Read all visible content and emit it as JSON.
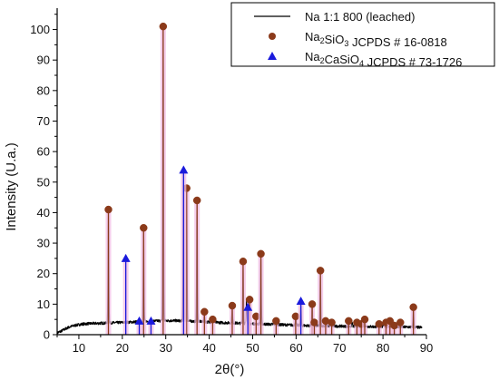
{
  "chart_data": {
    "type": "line",
    "xlabel": "2θ(°)",
    "ylabel": "Intensity (U.a.)",
    "xlim": [
      5,
      90
    ],
    "ylim": [
      0,
      107
    ],
    "x_ticks": [
      10,
      20,
      30,
      40,
      50,
      60,
      70,
      80,
      90
    ],
    "y_ticks": [
      0,
      10,
      20,
      30,
      40,
      50,
      60,
      70,
      80,
      90,
      100
    ],
    "grid": false,
    "legend_placement": "top-right",
    "colors": {
      "pattern_line": "#000000",
      "ref_phase_1": "#8b3a1a",
      "ref_phase_2": "#1a1adc",
      "ref_highlight": "#f2bde4"
    },
    "legend": [
      {
        "type": "line",
        "label": "Na 1:1 800 (leached)"
      },
      {
        "type": "circle-marker",
        "label_parts": [
          {
            "text": "Na"
          },
          {
            "text": "2",
            "sub": true
          },
          {
            "text": "SiO"
          },
          {
            "text": "3",
            "sub": true
          },
          {
            "text": " JCPDS # 16-0818"
          }
        ]
      },
      {
        "type": "triangle-marker",
        "label_parts": [
          {
            "text": "Na"
          },
          {
            "text": "2",
            "sub": true
          },
          {
            "text": "CaSiO"
          },
          {
            "text": "4",
            "sub": true
          },
          {
            "text": " JCPDS # 73-1726"
          }
        ]
      }
    ],
    "series": [
      {
        "name": "Na 1:1 800 (leached)",
        "kind": "line",
        "background_points": [
          [
            5,
            0.6
          ],
          [
            6,
            1.2
          ],
          [
            7,
            2.0
          ],
          [
            8,
            2.6
          ],
          [
            9,
            3.0
          ],
          [
            10,
            3.3
          ],
          [
            11,
            3.5
          ],
          [
            12,
            3.6
          ],
          [
            14,
            3.7
          ],
          [
            16,
            3.8
          ],
          [
            18,
            3.9
          ],
          [
            20,
            4.0
          ],
          [
            22,
            4.1
          ],
          [
            24,
            4.3
          ],
          [
            26,
            4.4
          ],
          [
            28,
            4.5
          ],
          [
            30,
            4.6
          ],
          [
            32,
            4.6
          ],
          [
            34,
            4.5
          ],
          [
            36,
            4.4
          ],
          [
            38,
            4.3
          ],
          [
            40,
            4.1
          ],
          [
            42,
            4.0
          ],
          [
            44,
            3.9
          ],
          [
            46,
            3.8
          ],
          [
            48,
            3.7
          ],
          [
            50,
            3.6
          ],
          [
            52,
            3.5
          ],
          [
            54,
            3.4
          ],
          [
            56,
            3.3
          ],
          [
            58,
            3.2
          ],
          [
            60,
            3.1
          ],
          [
            62,
            3.0
          ],
          [
            64,
            2.9
          ],
          [
            66,
            2.9
          ],
          [
            68,
            2.8
          ],
          [
            70,
            2.8
          ],
          [
            72,
            2.7
          ],
          [
            74,
            2.7
          ],
          [
            76,
            2.7
          ],
          [
            78,
            2.6
          ],
          [
            80,
            2.6
          ],
          [
            82,
            2.6
          ],
          [
            84,
            2.5
          ],
          [
            86,
            2.5
          ],
          [
            88,
            2.4
          ],
          [
            89,
            2.4
          ]
        ],
        "peaks": [
          {
            "x": 16.8,
            "y": 40
          },
          {
            "x": 24.9,
            "y": 35
          },
          {
            "x": 29.4,
            "y": 100
          },
          {
            "x": 34.1,
            "y": 53
          },
          {
            "x": 34.8,
            "y": 48
          },
          {
            "x": 37.2,
            "y": 44
          },
          {
            "x": 38.9,
            "y": 7
          },
          {
            "x": 40.8,
            "y": 5
          },
          {
            "x": 45.3,
            "y": 9
          },
          {
            "x": 47.8,
            "y": 23
          },
          {
            "x": 48.6,
            "y": 11
          },
          {
            "x": 51.9,
            "y": 26
          },
          {
            "x": 55.4,
            "y": 5
          },
          {
            "x": 59.9,
            "y": 6
          },
          {
            "x": 61.1,
            "y": 10
          },
          {
            "x": 63.7,
            "y": 10
          },
          {
            "x": 65.6,
            "y": 20
          },
          {
            "x": 66.8,
            "y": 5
          },
          {
            "x": 68.2,
            "y": 4
          },
          {
            "x": 72.9,
            "y": 4
          },
          {
            "x": 75.8,
            "y": 4
          },
          {
            "x": 80.2,
            "y": 4
          },
          {
            "x": 82.1,
            "y": 4
          },
          {
            "x": 87.0,
            "y": 9
          }
        ]
      },
      {
        "name": "Na2SiO3 JCPDS # 16-0818",
        "kind": "reference",
        "marker": "circle",
        "points": [
          {
            "x": 16.8,
            "y": 41
          },
          {
            "x": 24.9,
            "y": 35
          },
          {
            "x": 29.4,
            "y": 101
          },
          {
            "x": 34.8,
            "y": 48
          },
          {
            "x": 37.2,
            "y": 44
          },
          {
            "x": 38.9,
            "y": 7.5
          },
          {
            "x": 40.8,
            "y": 5
          },
          {
            "x": 45.3,
            "y": 9.5
          },
          {
            "x": 47.8,
            "y": 24
          },
          {
            "x": 49.3,
            "y": 11.5
          },
          {
            "x": 50.8,
            "y": 6
          },
          {
            "x": 51.9,
            "y": 26.5
          },
          {
            "x": 55.4,
            "y": 4.5
          },
          {
            "x": 59.9,
            "y": 6
          },
          {
            "x": 63.7,
            "y": 10
          },
          {
            "x": 64.2,
            "y": 4
          },
          {
            "x": 65.6,
            "y": 21
          },
          {
            "x": 66.8,
            "y": 4.5
          },
          {
            "x": 68.2,
            "y": 4
          },
          {
            "x": 72.1,
            "y": 4.5
          },
          {
            "x": 74.0,
            "y": 4
          },
          {
            "x": 75.0,
            "y": 3.5
          },
          {
            "x": 75.8,
            "y": 5
          },
          {
            "x": 79.1,
            "y": 3.5
          },
          {
            "x": 80.7,
            "y": 4
          },
          {
            "x": 81.6,
            "y": 4.5
          },
          {
            "x": 82.6,
            "y": 3
          },
          {
            "x": 84.0,
            "y": 4
          },
          {
            "x": 87.0,
            "y": 9
          }
        ]
      },
      {
        "name": "Na2CaSiO4 JCPDS # 73-1726",
        "kind": "reference",
        "marker": "triangle",
        "points": [
          {
            "x": 20.8,
            "y": 25
          },
          {
            "x": 23.9,
            "y": 4.5
          },
          {
            "x": 26.6,
            "y": 4.5
          },
          {
            "x": 34.1,
            "y": 54
          },
          {
            "x": 48.9,
            "y": 9
          },
          {
            "x": 61.1,
            "y": 11
          }
        ]
      }
    ]
  }
}
